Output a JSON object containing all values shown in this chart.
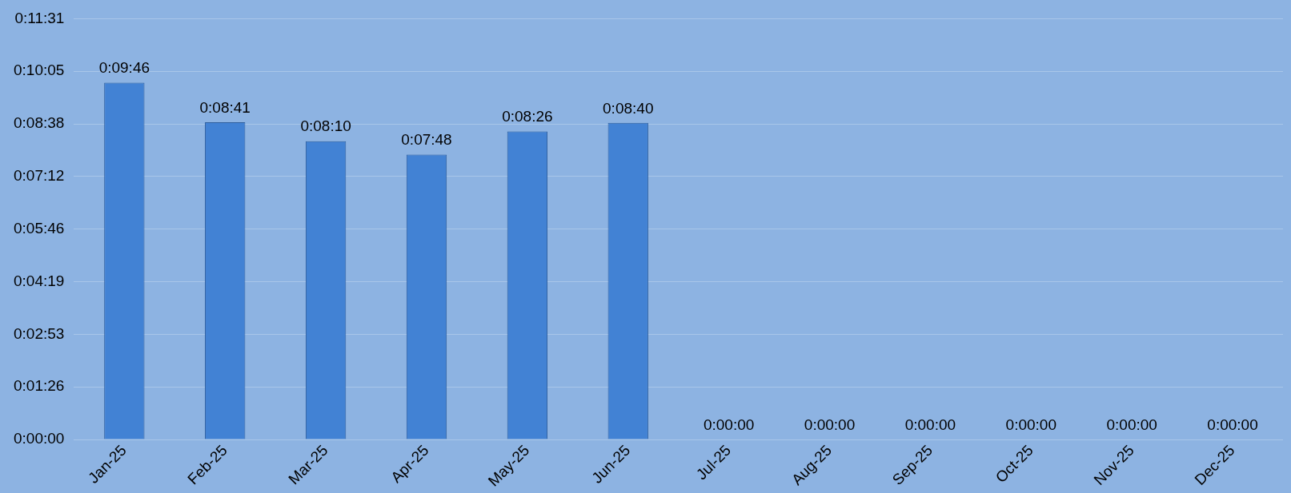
{
  "chart_data": {
    "type": "bar",
    "categories": [
      "Jan-25",
      "Feb-25",
      "Mar-25",
      "Apr-25",
      "May-25",
      "Jun-25",
      "Jul-25",
      "Aug-25",
      "Sep-25",
      "Oct-25",
      "Nov-25",
      "Dec-25"
    ],
    "values": [
      586,
      521,
      490,
      468,
      506,
      520,
      0,
      0,
      0,
      0,
      0,
      0
    ],
    "value_labels": [
      "0:09:46",
      "0:08:41",
      "0:08:10",
      "0:07:48",
      "0:08:26",
      "0:08:40",
      "0:00:00",
      "0:00:00",
      "0:00:00",
      "0:00:00",
      "0:00:00",
      "0:00:00"
    ],
    "color": "#4282d4",
    "ylim": [
      0,
      691.2
    ],
    "yticks": [
      {
        "value": 0,
        "label": "0:00:00"
      },
      {
        "value": 86.4,
        "label": "0:01:26"
      },
      {
        "value": 172.8,
        "label": "0:02:53"
      },
      {
        "value": 259.2,
        "label": "0:04:19"
      },
      {
        "value": 345.6,
        "label": "0:05:46"
      },
      {
        "value": 432,
        "label": "0:07:12"
      },
      {
        "value": 518.4,
        "label": "0:08:38"
      },
      {
        "value": 604.8,
        "label": "0:10:05"
      },
      {
        "value": 691.2,
        "label": "0:11:31"
      }
    ],
    "grid": "y",
    "legend": false
  }
}
